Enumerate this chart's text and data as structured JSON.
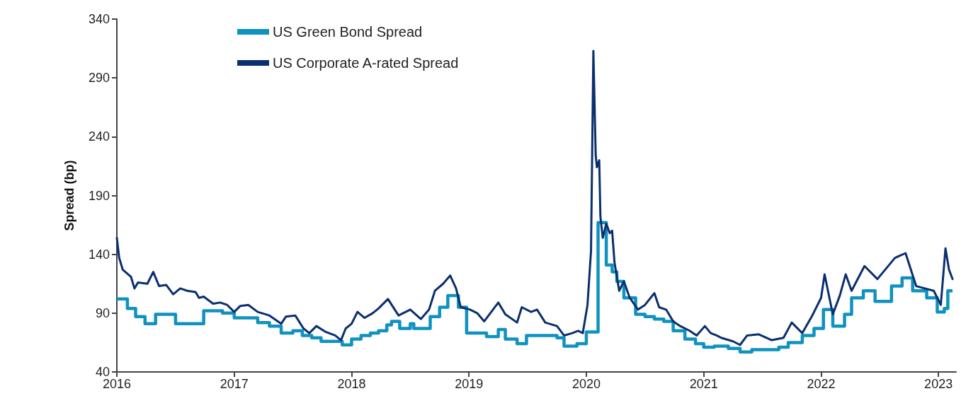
{
  "chart_data": {
    "type": "line",
    "ylabel": "Spread (bp)",
    "xlim": [
      2016,
      2023.15
    ],
    "xticks": [
      2016,
      2017,
      2018,
      2019,
      2020,
      2021,
      2022,
      2023
    ],
    "ylim": [
      40,
      340
    ],
    "yticks": [
      40,
      90,
      140,
      190,
      240,
      290,
      340
    ],
    "grid": false,
    "legend": "top left",
    "marker": "none",
    "line_style": "solid",
    "series": [
      {
        "name": "US Green Bond Spread",
        "type": "step",
        "color": "#0f92c0",
        "x": [
          2016.0,
          2016.09,
          2016.16,
          2016.24,
          2016.33,
          2016.5,
          2016.74,
          2016.9,
          2017.0,
          2017.2,
          2017.3,
          2017.4,
          2017.5,
          2017.58,
          2017.66,
          2017.74,
          2017.92,
          2018.0,
          2018.08,
          2018.16,
          2018.23,
          2018.3,
          2018.34,
          2018.41,
          2018.5,
          2018.53,
          2018.67,
          2018.75,
          2018.82,
          2018.91,
          2018.98,
          2019.15,
          2019.25,
          2019.31,
          2019.41,
          2019.49,
          2019.75,
          2019.81,
          2019.92,
          2020.0,
          2020.1,
          2020.17,
          2020.22,
          2020.26,
          2020.32,
          2020.42,
          2020.5,
          2020.58,
          2020.66,
          2020.74,
          2020.84,
          2020.93,
          2021.0,
          2021.09,
          2021.21,
          2021.31,
          2021.41,
          2021.64,
          2021.72,
          2021.84,
          2021.94,
          2022.02,
          2022.1,
          2022.2,
          2022.26,
          2022.36,
          2022.46,
          2022.6,
          2022.69,
          2022.78,
          2022.9,
          2022.99,
          2023.05,
          2023.08,
          2023.12
        ],
        "values": [
          102,
          94,
          87,
          81,
          89,
          81,
          92,
          90,
          86,
          82,
          79,
          73,
          75,
          71,
          69,
          66,
          63,
          68,
          71,
          73,
          75,
          80,
          83,
          77,
          81,
          77,
          87,
          95,
          105,
          95,
          73,
          70,
          76,
          68,
          64,
          71,
          69,
          62,
          64,
          74,
          167,
          131,
          125,
          117,
          103,
          89,
          87,
          85,
          83,
          75,
          68,
          64,
          61,
          62,
          60,
          57,
          59,
          61,
          65,
          71,
          77,
          93,
          79,
          89,
          103,
          109,
          100,
          113,
          120,
          109,
          103,
          91,
          94,
          109,
          109
        ]
      },
      {
        "name": "US Corporate A-rated Spread",
        "color": "#0a2f6e",
        "x": [
          2016.0,
          2016.02,
          2016.05,
          2016.12,
          2016.15,
          2016.18,
          2016.26,
          2016.31,
          2016.36,
          2016.42,
          2016.48,
          2016.54,
          2016.6,
          2016.67,
          2016.7,
          2016.74,
          2016.82,
          2016.88,
          2016.94,
          2017.0,
          2017.05,
          2017.12,
          2017.2,
          2017.3,
          2017.4,
          2017.44,
          2017.52,
          2017.59,
          2017.64,
          2017.7,
          2017.78,
          2017.86,
          2017.91,
          2017.95,
          2018.0,
          2018.05,
          2018.11,
          2018.18,
          2018.23,
          2018.31,
          2018.4,
          2018.5,
          2018.59,
          2018.66,
          2018.71,
          2018.78,
          2018.84,
          2018.89,
          2018.93,
          2019.01,
          2019.07,
          2019.13,
          2019.19,
          2019.25,
          2019.31,
          2019.41,
          2019.45,
          2019.53,
          2019.58,
          2019.65,
          2019.75,
          2019.81,
          2019.88,
          2019.93,
          2019.97,
          2020.01,
          2020.04,
          2020.06,
          2020.08,
          2020.09,
          2020.11,
          2020.12,
          2020.14,
          2020.17,
          2020.2,
          2020.22,
          2020.24,
          2020.28,
          2020.32,
          2020.37,
          2020.44,
          2020.5,
          2020.58,
          2020.62,
          2020.68,
          2020.74,
          2020.8,
          2020.88,
          2020.94,
          2021.01,
          2021.06,
          2021.11,
          2021.15,
          2021.25,
          2021.31,
          2021.37,
          2021.47,
          2021.58,
          2021.68,
          2021.75,
          2021.84,
          2021.92,
          2022.0,
          2022.03,
          2022.1,
          2022.16,
          2022.21,
          2022.26,
          2022.37,
          2022.48,
          2022.63,
          2022.72,
          2022.81,
          2022.96,
          2023.02,
          2023.06,
          2023.09,
          2023.12
        ],
        "values": [
          154,
          137,
          127,
          121,
          111,
          116,
          115,
          125,
          113,
          114,
          106,
          111,
          109,
          108,
          103,
          104,
          98,
          99,
          97,
          91,
          96,
          97,
          91,
          88,
          81,
          87,
          88,
          77,
          73,
          79,
          74,
          71,
          67,
          77,
          81,
          91,
          86,
          90,
          94,
          102,
          88,
          93,
          85,
          93,
          109,
          115,
          122,
          111,
          95,
          93,
          90,
          83,
          91,
          99,
          89,
          82,
          95,
          91,
          93,
          82,
          79,
          71,
          73,
          75,
          73,
          97,
          143,
          313,
          224,
          214,
          220,
          172,
          154,
          166,
          158,
          160,
          133,
          109,
          117,
          103,
          93,
          97,
          107,
          95,
          93,
          83,
          79,
          75,
          71,
          79,
          73,
          71,
          69,
          66,
          63,
          71,
          72,
          67,
          69,
          82,
          73,
          87,
          103,
          123,
          89,
          105,
          123,
          109,
          130,
          119,
          137,
          141,
          113,
          109,
          97,
          145,
          127,
          119
        ]
      }
    ]
  }
}
